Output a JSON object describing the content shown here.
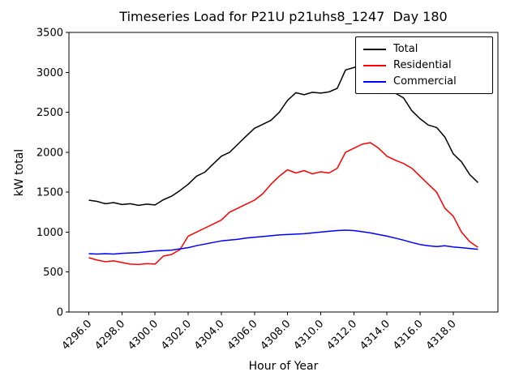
{
  "chart_data": {
    "type": "line",
    "title": "Timeseries Load for P21U p21uhs8_1247  Day 180",
    "xlabel": "Hour of Year",
    "ylabel": "kW total",
    "xlim": [
      4294.8,
      4320.7
    ],
    "ylim": [
      0,
      3500
    ],
    "xticks": [
      4296,
      4298,
      4300,
      4302,
      4304,
      4306,
      4308,
      4310,
      4312,
      4314,
      4316,
      4318
    ],
    "yticks": [
      0,
      500,
      1000,
      1500,
      2000,
      2500,
      3000,
      3500
    ],
    "grid": false,
    "legend_position": "upper right",
    "x": [
      4296.0,
      4296.5,
      4297.0,
      4297.5,
      4298.0,
      4298.5,
      4299.0,
      4299.5,
      4300.0,
      4300.5,
      4301.0,
      4301.5,
      4302.0,
      4302.5,
      4303.0,
      4303.5,
      4304.0,
      4304.5,
      4305.0,
      4305.5,
      4306.0,
      4306.5,
      4307.0,
      4307.5,
      4308.0,
      4308.5,
      4309.0,
      4309.5,
      4310.0,
      4310.5,
      4311.0,
      4311.5,
      4312.0,
      4312.5,
      4313.0,
      4313.5,
      4314.0,
      4314.5,
      4315.0,
      4315.5,
      4316.0,
      4316.5,
      4317.0,
      4317.5,
      4318.0,
      4318.5,
      4319.0,
      4319.5
    ],
    "series": [
      {
        "name": "Total",
        "color": "#000000",
        "values": [
          1400,
          1385,
          1355,
          1370,
          1345,
          1355,
          1335,
          1350,
          1340,
          1405,
          1450,
          1520,
          1600,
          1700,
          1750,
          1850,
          1950,
          2000,
          2100,
          2200,
          2300,
          2350,
          2400,
          2500,
          2650,
          2745,
          2720,
          2750,
          2740,
          2755,
          2800,
          3030,
          3060,
          3100,
          3010,
          2930,
          2830,
          2740,
          2680,
          2520,
          2420,
          2340,
          2310,
          2190,
          1980,
          1880,
          1720,
          1620
        ]
      },
      {
        "name": "Residential",
        "color": "#ff0000",
        "values": [
          680,
          650,
          630,
          640,
          620,
          600,
          595,
          605,
          600,
          700,
          720,
          780,
          950,
          1000,
          1050,
          1100,
          1150,
          1250,
          1300,
          1350,
          1400,
          1480,
          1600,
          1700,
          1780,
          1740,
          1770,
          1730,
          1755,
          1740,
          1800,
          2000,
          2050,
          2100,
          2120,
          2050,
          1950,
          1900,
          1860,
          1800,
          1700,
          1600,
          1500,
          1300,
          1200,
          1000,
          880,
          810
        ]
      },
      {
        "name": "Commercial",
        "color": "#0000ff",
        "values": [
          730,
          725,
          730,
          725,
          735,
          740,
          745,
          755,
          765,
          770,
          775,
          790,
          805,
          830,
          850,
          870,
          890,
          900,
          910,
          925,
          935,
          945,
          955,
          965,
          970,
          975,
          980,
          990,
          1000,
          1010,
          1020,
          1025,
          1020,
          1005,
          990,
          970,
          950,
          925,
          900,
          870,
          845,
          830,
          820,
          830,
          815,
          805,
          795,
          785
        ]
      }
    ]
  }
}
